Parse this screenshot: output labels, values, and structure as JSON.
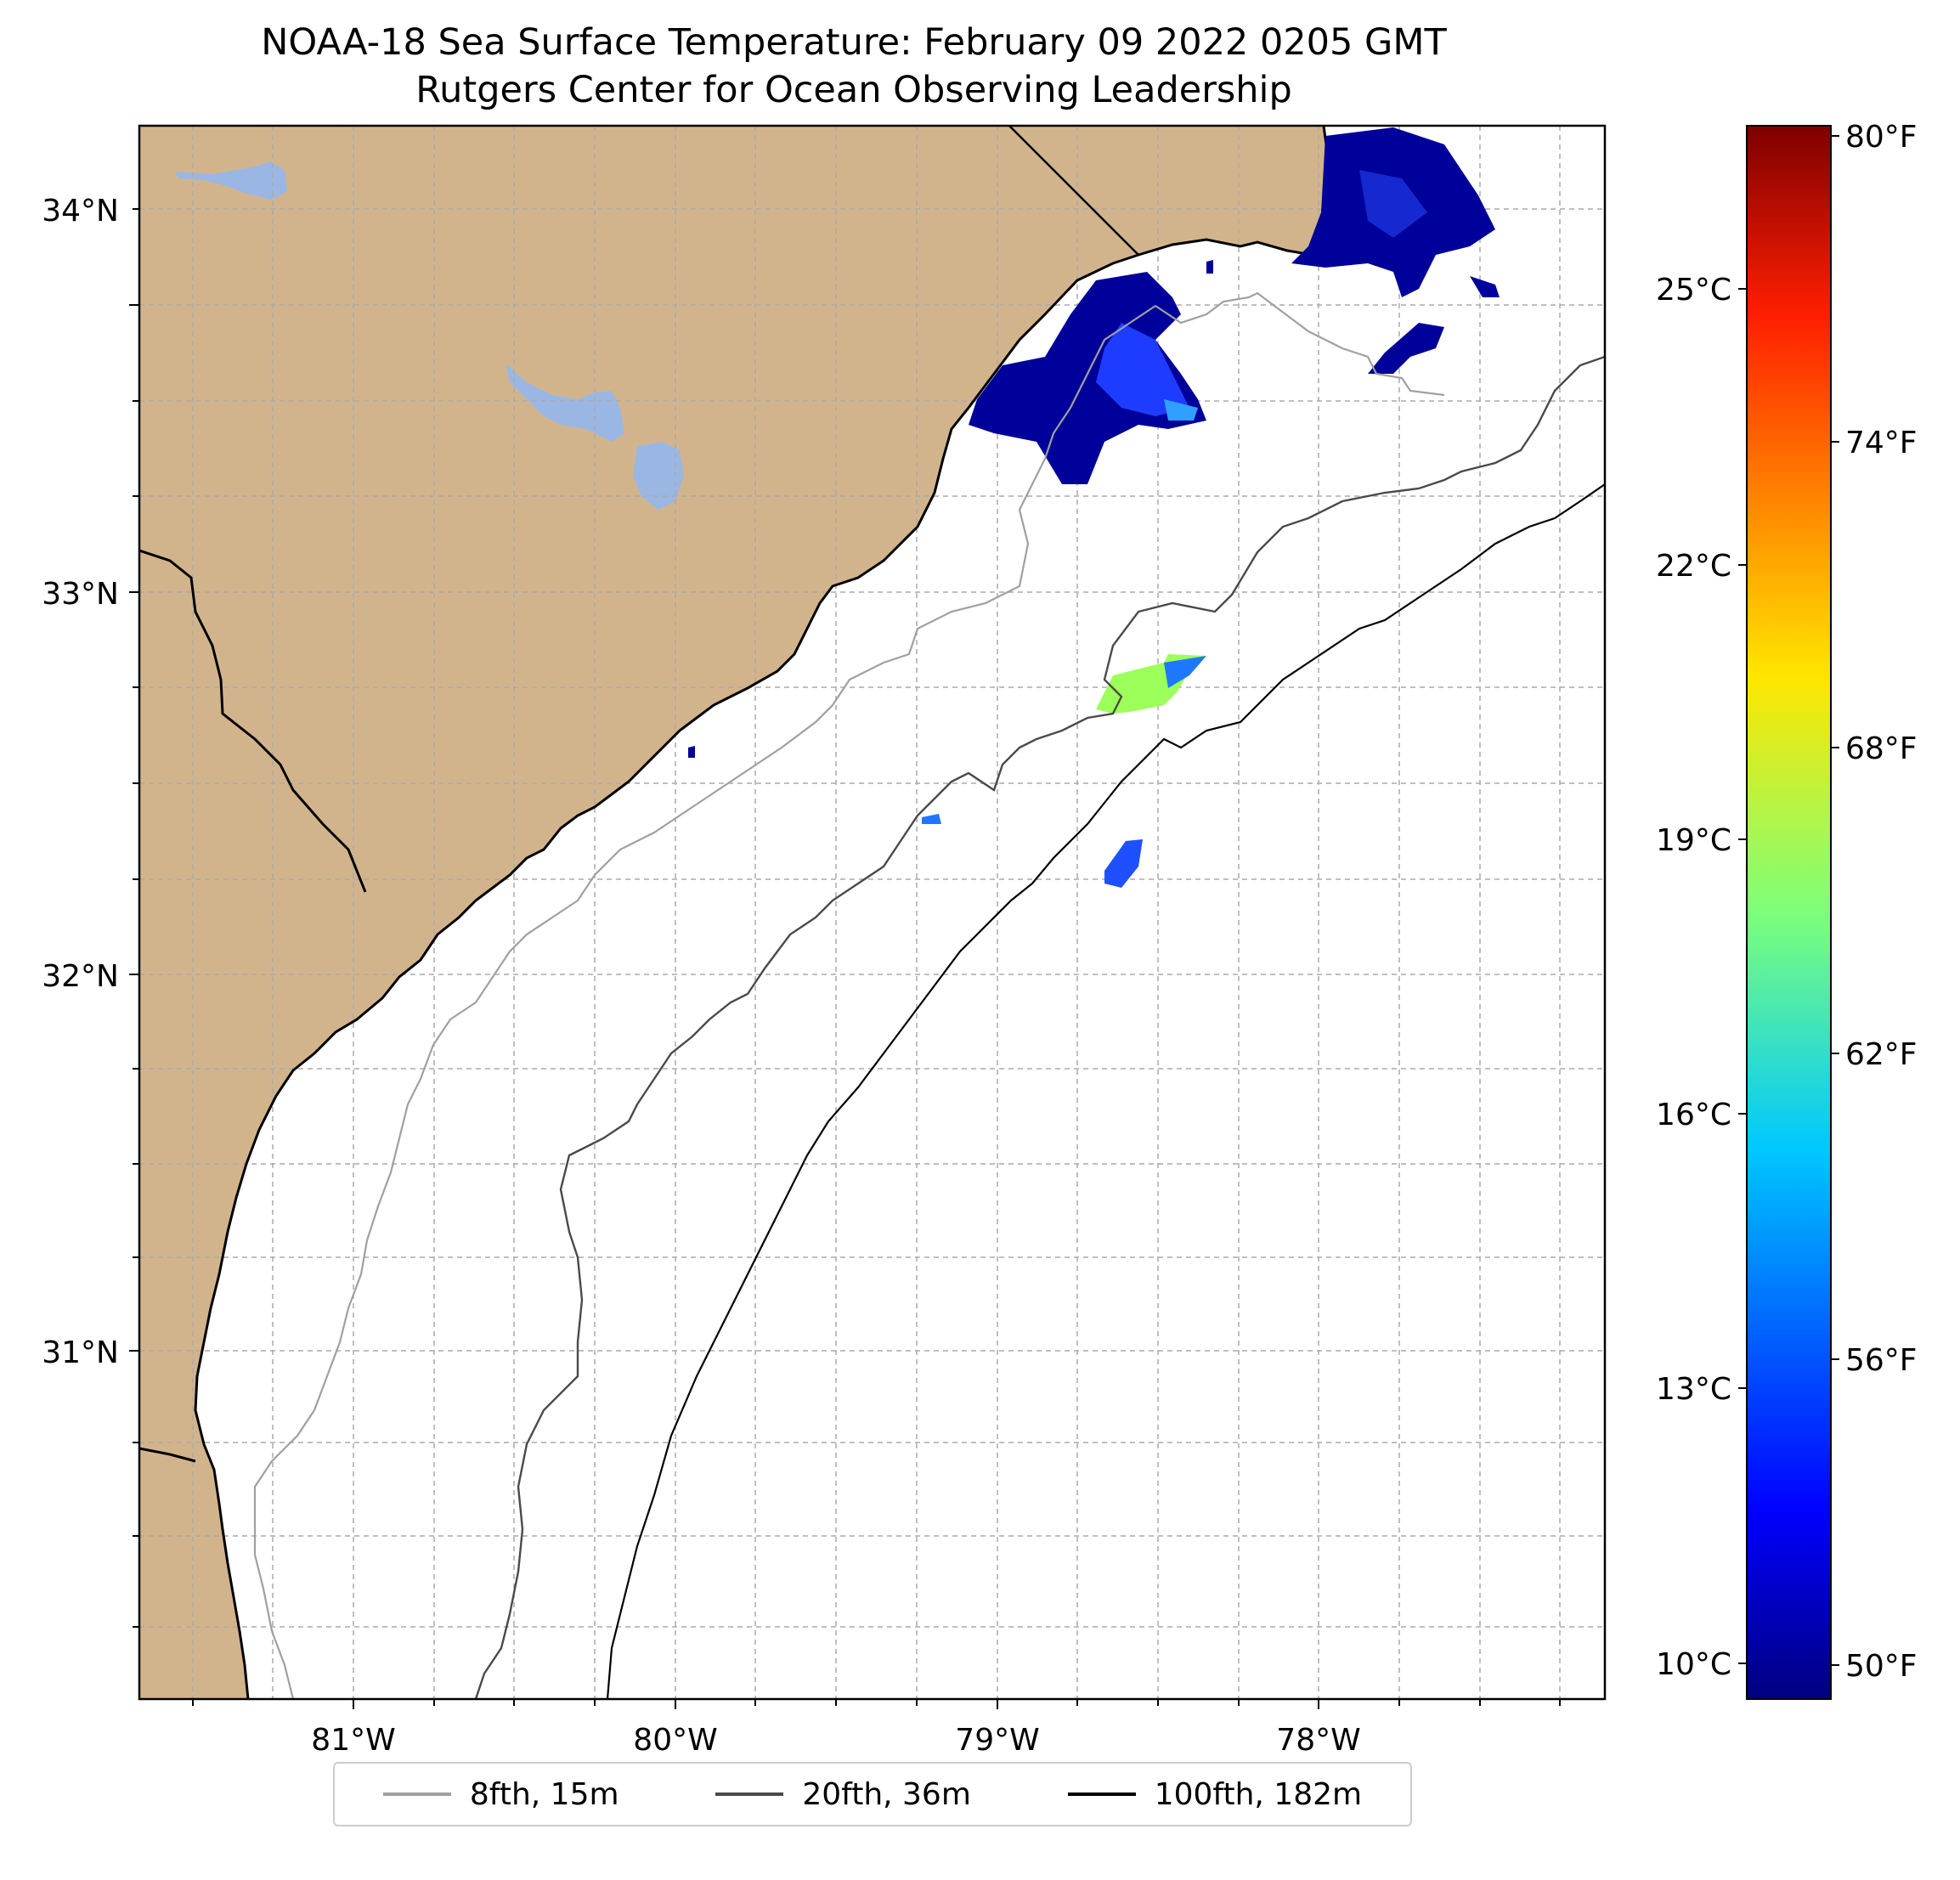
{
  "title": {
    "line1": "NOAA-18 Sea Surface Temperature: February 09 2022 0205 GMT",
    "line2": "Rutgers Center for Ocean Observing Leadership"
  },
  "map": {
    "land_color": "#d2b48c",
    "water_color": "#ffffff",
    "lake_color": "#9ab7e3",
    "gridlines": "dashed",
    "longitude_ticks": [
      "81°W",
      "80°W",
      "79°W",
      "78°W"
    ],
    "latitude_ticks": [
      "34°N",
      "33°N",
      "32°N",
      "31°N"
    ]
  },
  "colorbar": {
    "colormap": "jet",
    "celsius_ticks": [
      "25°C",
      "22°C",
      "19°C",
      "16°C",
      "13°C",
      "10°C"
    ],
    "fahrenheit_ticks": [
      "80°F",
      "74°F",
      "68°F",
      "62°F",
      "56°F",
      "50°F"
    ]
  },
  "legend": {
    "items": [
      {
        "label": "8fth, 15m",
        "color": "#a0a0a0"
      },
      {
        "label": "20fth, 36m",
        "color": "#4a4a4a"
      },
      {
        "label": "100fth, 182m",
        "color": "#000000"
      }
    ]
  }
}
